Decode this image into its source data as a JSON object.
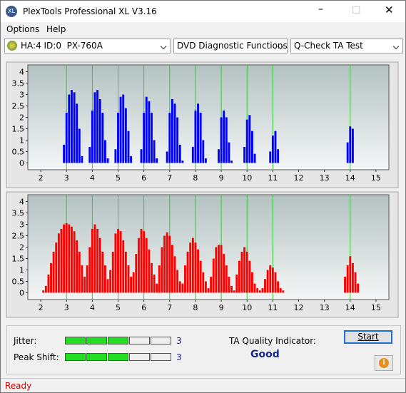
{
  "window": {
    "title": "PlexTools Professional XL V3.16"
  },
  "menu": [
    "Options",
    "Help"
  ],
  "toolbar": {
    "drive": "HA:4 ID:0  PX-760A",
    "function": "DVD Diagnostic Functions",
    "test": "Q-Check TA Test"
  },
  "chart_data": [
    {
      "type": "bar",
      "color": "#0000ff",
      "xlim": [
        1.5,
        15.5
      ],
      "ylim": [
        -0.3,
        4.3
      ],
      "xticks": [
        2,
        3,
        4,
        5,
        6,
        7,
        8,
        9,
        10,
        11,
        12,
        13,
        14,
        15
      ],
      "yticks": [
        0,
        0.5,
        1,
        1.5,
        2,
        2.5,
        3,
        3.5,
        4
      ],
      "marker_color": "#33cc33",
      "markers": [
        3,
        4,
        5,
        6,
        7,
        8,
        9,
        10,
        11,
        14
      ],
      "x": [
        2.9,
        3.0,
        3.1,
        3.2,
        3.3,
        3.4,
        3.5,
        3.6,
        3.9,
        4.0,
        4.1,
        4.2,
        4.3,
        4.4,
        4.5,
        4.6,
        4.9,
        5.0,
        5.1,
        5.2,
        5.3,
        5.4,
        5.5,
        5.9,
        6.0,
        6.1,
        6.2,
        6.3,
        6.4,
        6.5,
        6.9,
        7.0,
        7.1,
        7.2,
        7.3,
        7.4,
        7.5,
        7.9,
        8.0,
        8.1,
        8.2,
        8.3,
        8.4,
        8.9,
        9.0,
        9.1,
        9.2,
        9.3,
        9.4,
        9.9,
        10.0,
        10.1,
        10.2,
        10.3,
        10.9,
        11.0,
        11.1,
        11.2,
        13.9,
        14.0,
        14.1
      ],
      "values": [
        0.8,
        2.2,
        3.0,
        3.2,
        3.1,
        2.6,
        1.5,
        0.3,
        0.7,
        2.3,
        3.1,
        3.2,
        2.8,
        2.2,
        1.0,
        0.2,
        0.6,
        2.2,
        2.9,
        3.0,
        2.4,
        1.4,
        0.3,
        0.6,
        2.2,
        2.9,
        2.7,
        2.2,
        1.0,
        0.2,
        0.5,
        2.2,
        2.8,
        2.6,
        2.0,
        0.8,
        0.1,
        0.7,
        2.3,
        2.6,
        2.2,
        1.0,
        0.2,
        0.6,
        2.0,
        2.3,
        2.0,
        0.9,
        0.1,
        0.7,
        1.9,
        2.1,
        1.4,
        0.4,
        0.5,
        1.2,
        1.4,
        0.6,
        0.9,
        1.6,
        1.5
      ]
    },
    {
      "type": "bar",
      "color": "#ff0000",
      "xlim": [
        1.5,
        15.5
      ],
      "ylim": [
        -0.3,
        4.3
      ],
      "xticks": [
        2,
        3,
        4,
        5,
        6,
        7,
        8,
        9,
        10,
        11,
        12,
        13,
        14,
        15
      ],
      "yticks": [
        0,
        0.5,
        1,
        1.5,
        2,
        2.5,
        3,
        3.5,
        4
      ],
      "marker_color": "#33cc33",
      "markers": [
        3,
        4,
        5,
        6,
        7,
        8,
        9,
        10,
        11,
        14
      ],
      "x": [
        2.1,
        2.2,
        2.3,
        2.4,
        2.5,
        2.6,
        2.7,
        2.8,
        2.9,
        3.0,
        3.1,
        3.2,
        3.3,
        3.4,
        3.5,
        3.6,
        3.7,
        3.8,
        3.9,
        4.0,
        4.1,
        4.2,
        4.3,
        4.4,
        4.5,
        4.6,
        4.7,
        4.8,
        4.9,
        5.0,
        5.1,
        5.2,
        5.3,
        5.4,
        5.5,
        5.6,
        5.7,
        5.8,
        5.9,
        6.0,
        6.1,
        6.2,
        6.3,
        6.4,
        6.5,
        6.6,
        6.7,
        6.8,
        6.9,
        7.0,
        7.1,
        7.2,
        7.3,
        7.4,
        7.5,
        7.6,
        7.7,
        7.8,
        7.9,
        8.0,
        8.1,
        8.2,
        8.3,
        8.4,
        8.5,
        8.6,
        8.7,
        8.8,
        8.9,
        9.0,
        9.1,
        9.2,
        9.3,
        9.4,
        9.5,
        9.6,
        9.7,
        9.8,
        9.9,
        10.0,
        10.1,
        10.2,
        10.3,
        10.4,
        10.5,
        10.6,
        10.7,
        10.8,
        10.9,
        11.0,
        11.1,
        11.2,
        11.3,
        11.4,
        13.8,
        13.9,
        14.0,
        14.1,
        14.2,
        14.3
      ],
      "values": [
        0.1,
        0.3,
        0.8,
        1.3,
        1.8,
        2.2,
        2.6,
        2.8,
        3.0,
        3.05,
        3.0,
        2.9,
        2.7,
        2.3,
        1.8,
        1.2,
        0.7,
        1.2,
        2.0,
        2.8,
        3.0,
        2.8,
        2.4,
        1.8,
        1.2,
        0.6,
        1.0,
        1.8,
        2.6,
        2.8,
        2.7,
        2.3,
        1.8,
        1.2,
        0.7,
        0.9,
        1.7,
        2.4,
        2.8,
        2.7,
        2.4,
        1.9,
        1.3,
        0.8,
        0.4,
        1.2,
        2.0,
        2.5,
        2.65,
        2.5,
        2.1,
        1.6,
        1.0,
        0.5,
        0.4,
        1.2,
        1.8,
        2.2,
        2.4,
        2.2,
        1.9,
        1.4,
        0.9,
        0.5,
        0.2,
        0.7,
        1.5,
        2.0,
        2.1,
        2.1,
        1.7,
        1.2,
        0.7,
        0.3,
        0.1,
        0.8,
        1.4,
        1.8,
        2.0,
        1.8,
        1.4,
        0.9,
        0.4,
        0.2,
        0.1,
        0.2,
        0.6,
        1.0,
        1.2,
        1.1,
        0.9,
        0.5,
        0.2,
        0.1,
        0.7,
        1.2,
        1.6,
        1.3,
        0.9,
        0.4
      ]
    }
  ],
  "quality": {
    "jitter_label": "Jitter:",
    "jitter": 3,
    "peak_shift_label": "Peak Shift:",
    "peak_shift": 3,
    "ta_label": "TA Quality Indicator:",
    "ta_value": "Good",
    "start": "Start"
  },
  "status": "Ready"
}
